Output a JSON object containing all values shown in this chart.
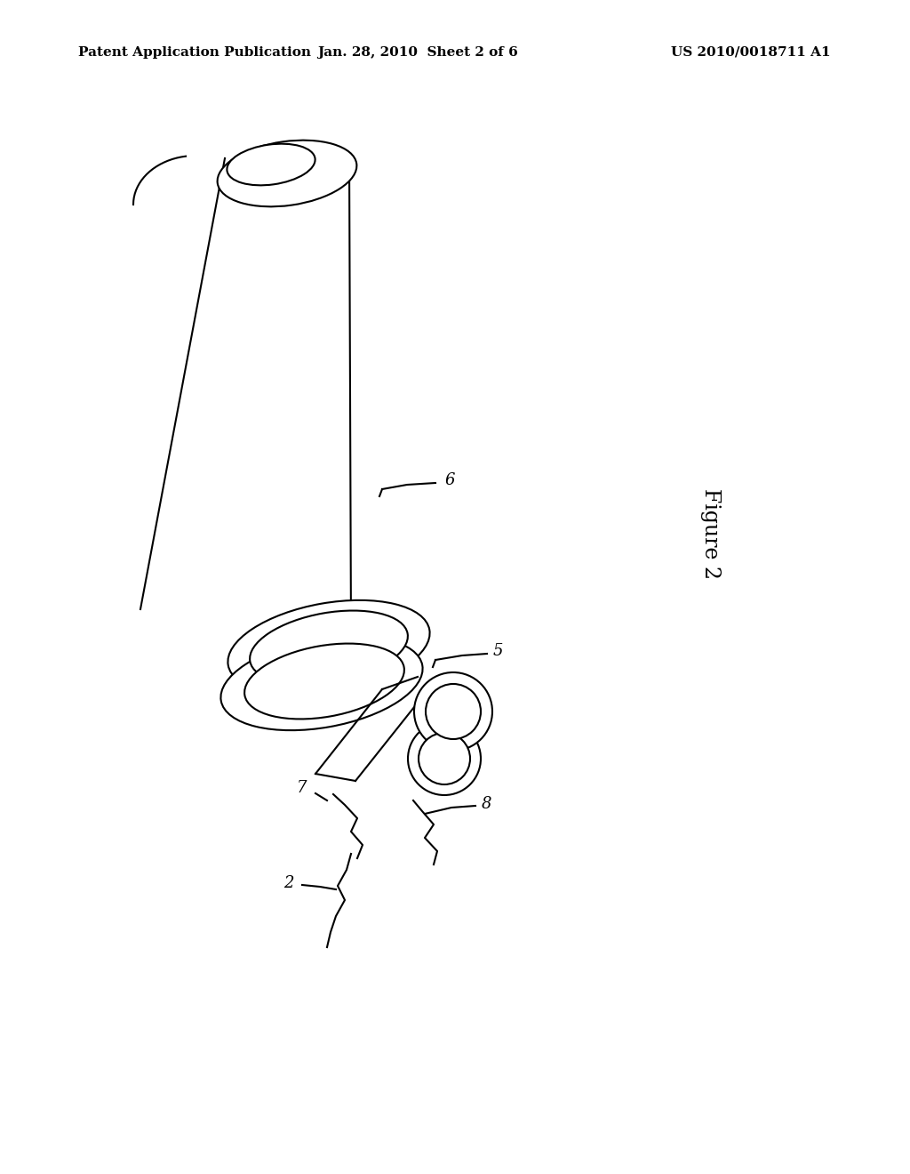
{
  "bg_color": "#ffffff",
  "header_left": "Patent Application Publication",
  "header_middle": "Jan. 28, 2010  Sheet 2 of 6",
  "header_right": "US 2010/0018711 A1",
  "figure_label": "Figure 2",
  "line_color": "#000000",
  "header_fontsize": 11,
  "figure_label_fontsize": 17,
  "ref_fontsize": 13
}
